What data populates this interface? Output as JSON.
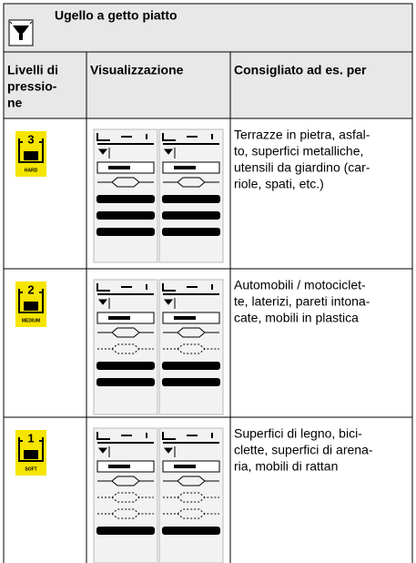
{
  "header": {
    "title": "Ugello a getto piatto"
  },
  "table": {
    "columns": [
      [
        "Livelli di",
        "pressio-",
        "ne"
      ],
      [
        "Visualizzazione"
      ],
      [
        "Consigliato ad es. per"
      ]
    ],
    "rows": [
      {
        "level": {
          "number": "3",
          "label": "HARD"
        },
        "description": [
          "Terrazze in pietra, asfal-",
          "to, superfici metalliche,",
          "utensili da giardino (car-",
          "riole, spati, etc.)"
        ]
      },
      {
        "level": {
          "number": "2",
          "label": "MEDIUM"
        },
        "description": [
          "Automobili / motociclet-",
          "te, laterizi, pareti intona-",
          "cate, mobili in plastica"
        ]
      },
      {
        "level": {
          "number": "1",
          "label": "SOFT"
        },
        "description": [
          "Superfici di legno, bici-",
          "clette, superfici di arena-",
          "ria, mobili di rattan"
        ]
      }
    ]
  }
}
